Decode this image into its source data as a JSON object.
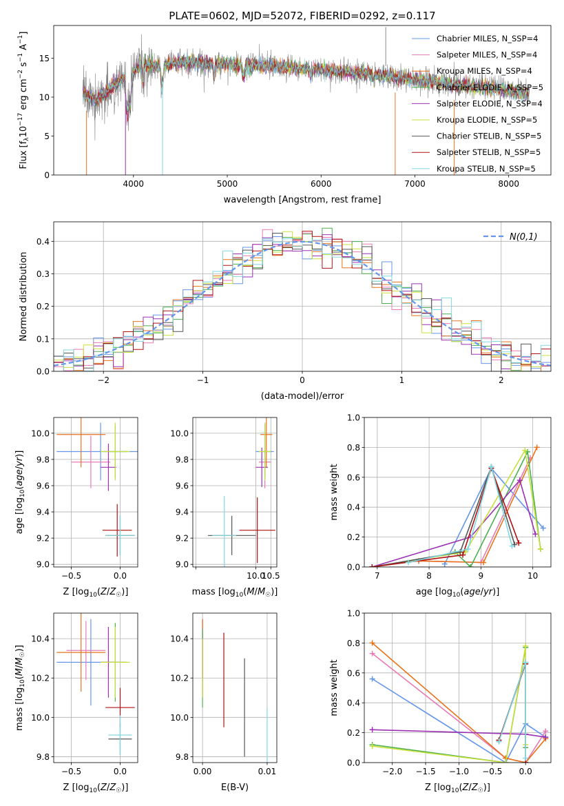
{
  "colors": [
    "#6495ed",
    "#e879b4",
    "#e8731b",
    "#4caf50",
    "#9b30b4",
    "#c8e03c",
    "#555555",
    "#b01010",
    "#80d8e0"
  ],
  "chart_data": [
    {
      "type": "line",
      "title": "PLATE=0602, MJD=52072, FIBERID=0292, z=0.117",
      "xlabel": "wavelength [Angstrom, rest frame]",
      "ylabel": "Flux [f_λ 10^-17 erg cm^-2 s^-1 A^-1]",
      "xlim": [
        3150,
        8450
      ],
      "ylim": [
        0,
        19.2
      ],
      "xticks": [
        4000,
        5000,
        6000,
        7000,
        8000
      ],
      "yticks": [
        0,
        5,
        10,
        15
      ],
      "legend_position": "top-right",
      "series": [
        {
          "name": "Chabrier MILES, N_SSP=4"
        },
        {
          "name": "Salpeter MILES, N_SSP=4"
        },
        {
          "name": "Kroupa MILES, N_SSP=4"
        },
        {
          "name": "Chabrier ELODIE, N_SSP=5"
        },
        {
          "name": "Salpeter ELODIE, N_SSP=4"
        },
        {
          "name": "Kroupa ELODIE, N_SSP=5"
        },
        {
          "name": "Chabrier STELIB, N_SSP=5"
        },
        {
          "name": "Salpeter STELIB, N_SSP=5"
        },
        {
          "name": "Kroupa STELIB, N_SSP=5"
        }
      ],
      "continuum": [
        [
          3460,
          10.5
        ],
        [
          3600,
          9.6
        ],
        [
          3800,
          11.5
        ],
        [
          3950,
          13.0
        ],
        [
          4100,
          14.2
        ],
        [
          4300,
          14.0
        ],
        [
          4500,
          14.5
        ],
        [
          5000,
          14.2
        ],
        [
          5500,
          14.0
        ],
        [
          6000,
          13.5
        ],
        [
          6500,
          13.0
        ],
        [
          7000,
          12.3
        ],
        [
          7500,
          11.5
        ],
        [
          8000,
          10.9
        ],
        [
          8200,
          10.5
        ]
      ],
      "data_range": [
        3460,
        8220
      ]
    },
    {
      "type": "histogram",
      "xlabel": "(data-model)/error",
      "ylabel": "Normed distribution",
      "xlim": [
        -2.5,
        2.5
      ],
      "ylim": [
        0,
        0.46
      ],
      "xticks": [
        -2,
        -1,
        0,
        1,
        2
      ],
      "yticks": [
        0.0,
        0.1,
        0.2,
        0.3,
        0.4
      ],
      "legend": "N(0,1)",
      "bin_width": 0.1,
      "reference_curve": "normal(0,1)"
    },
    {
      "type": "scatter",
      "xlabel": "Z [log10(Z/Z☉)]",
      "ylabel": "age  [log10(age/yr)]",
      "xlim": [
        -0.68,
        0.18
      ],
      "ylim": [
        8.98,
        10.12
      ],
      "xticks": [
        -0.5,
        0.0
      ],
      "yticks": [
        9.0,
        9.2,
        9.4,
        9.6,
        9.8,
        10.0
      ],
      "points": [
        {
          "x": -0.2,
          "xerr": 0.45,
          "y": 9.86,
          "yerr": 0.22
        },
        {
          "x": -0.3,
          "xerr": 0.2,
          "y": 9.78,
          "yerr": 0.2
        },
        {
          "x": -0.4,
          "xerr": 0.25,
          "y": 9.99,
          "yerr": 0.25
        },
        {
          "x": -0.05,
          "xerr": 0.12,
          "y": 9.86,
          "yerr": 0.2
        },
        {
          "x": -0.12,
          "xerr": 0.08,
          "y": 9.74,
          "yerr": 0.18
        },
        {
          "x": -0.05,
          "xerr": 0.15,
          "y": 9.86,
          "yerr": 0.22
        },
        {
          "x": 0.0,
          "xerr": 0.15,
          "y": 9.22,
          "yerr": 0.15
        },
        {
          "x": -0.03,
          "xerr": 0.15,
          "y": 9.26,
          "yerr": 0.2
        },
        {
          "x": 0.0,
          "xerr": 0.15,
          "y": 9.22,
          "yerr": 0.15
        }
      ]
    },
    {
      "type": "scatter",
      "xlabel": "mass [log10(M/M☉)]",
      "ylabel": "",
      "xlim": [
        7.9,
        10.7
      ],
      "ylim": [
        8.98,
        10.12
      ],
      "xticks": [
        8.0,
        10.0,
        10.5
      ],
      "xticklabels": [
        "",
        "10.0",
        "10.5"
      ],
      "yticks": [
        9.0,
        9.2,
        9.4,
        9.6,
        9.8,
        10.0
      ],
      "points": [
        {
          "x": 10.3,
          "xerr": 0.3,
          "y": 9.86,
          "yerr": 0.22
        },
        {
          "x": 10.3,
          "xerr": 0.2,
          "y": 9.78,
          "yerr": 0.2
        },
        {
          "x": 10.35,
          "xerr": 0.2,
          "y": 9.99,
          "yerr": 0.25
        },
        {
          "x": 10.3,
          "xerr": 0.2,
          "y": 9.86,
          "yerr": 0.2
        },
        {
          "x": 10.2,
          "xerr": 0.2,
          "y": 9.74,
          "yerr": 0.15
        },
        {
          "x": 10.3,
          "xerr": 0.2,
          "y": 9.86,
          "yerr": 0.22
        },
        {
          "x": 9.2,
          "xerr": 0.8,
          "y": 9.22,
          "yerr": 0.15
        },
        {
          "x": 10.05,
          "xerr": 0.6,
          "y": 9.26,
          "yerr": 0.25
        },
        {
          "x": 8.95,
          "xerr": 0.4,
          "y": 9.22,
          "yerr": 0.3
        }
      ]
    },
    {
      "type": "line",
      "xlabel": "age  [log10(age/yr)]",
      "ylabel": "mass weight",
      "xlim": [
        6.75,
        10.35
      ],
      "ylim": [
        0,
        1.0
      ],
      "xticks": [
        7,
        8,
        9,
        10
      ],
      "yticks": [
        0.0,
        0.2,
        0.4,
        0.6,
        0.8,
        1.0
      ],
      "series": [
        {
          "x": [
            8.3,
            9.2,
            10.2
          ],
          "y": [
            0.02,
            0.66,
            0.26
          ]
        },
        {
          "x": [
            7.8,
            9.0,
            9.95
          ],
          "y": [
            0.04,
            0.03,
            0.73
          ]
        },
        {
          "x": [
            7.8,
            9.05,
            10.08
          ],
          "y": [
            0.04,
            0.03,
            0.8
          ]
        },
        {
          "x": [
            8.5,
            8.8,
            9.9,
            10.15
          ],
          "y": [
            0.1,
            0.0,
            0.77,
            0.12
          ]
        },
        {
          "x": [
            6.9,
            8.8,
            9.75,
            10.05
          ],
          "y": [
            0.0,
            0.2,
            0.58,
            0.22
          ]
        },
        {
          "x": [
            6.9,
            8.7,
            9.85,
            10.15
          ],
          "y": [
            0.0,
            0.1,
            0.78,
            0.12
          ]
        },
        {
          "x": [
            6.9,
            8.6,
            9.2,
            9.65
          ],
          "y": [
            0.0,
            0.1,
            0.67,
            0.15
          ]
        },
        {
          "x": [
            6.9,
            8.65,
            9.2,
            9.73
          ],
          "y": [
            0.0,
            0.08,
            0.66,
            0.16
          ]
        },
        {
          "x": [
            7.6,
            8.75,
            9.2,
            9.6
          ],
          "y": [
            0.03,
            0.12,
            0.67,
            0.14
          ]
        }
      ]
    },
    {
      "type": "scatter",
      "xlabel": "Z [log10(Z/Z☉)]",
      "ylabel": "mass [log10(M/M☉)]",
      "xlim": [
        -0.68,
        0.18
      ],
      "ylim": [
        9.77,
        10.53
      ],
      "xticks": [
        -0.5,
        0.0
      ],
      "yticks": [
        9.8,
        10.0,
        10.2,
        10.4
      ],
      "points": [
        {
          "x": -0.3,
          "xerr": 0.35,
          "y": 10.28,
          "yerr": 0.22
        },
        {
          "x": -0.35,
          "xerr": 0.2,
          "y": 10.34,
          "yerr": 0.15
        },
        {
          "x": -0.4,
          "xerr": 0.25,
          "y": 10.33,
          "yerr": 0.2
        },
        {
          "x": -0.05,
          "xerr": 0.12,
          "y": 10.28,
          "yerr": 0.2
        },
        {
          "x": -0.12,
          "xerr": 0.08,
          "y": 10.28,
          "yerr": 0.18
        },
        {
          "x": -0.05,
          "xerr": 0.15,
          "y": 10.28,
          "yerr": 0.18
        },
        {
          "x": 0.0,
          "xerr": 0.12,
          "y": 9.89,
          "yerr": 0.08
        },
        {
          "x": 0.0,
          "xerr": 0.15,
          "y": 10.05,
          "yerr": 0.1
        },
        {
          "x": 0.0,
          "xerr": 0.12,
          "y": 9.91,
          "yerr": 0.1
        }
      ]
    },
    {
      "type": "scatter",
      "xlabel": "E(B-V)",
      "ylabel": "",
      "xlim": [
        -0.0015,
        0.0115
      ],
      "ylim": [
        9.77,
        10.53
      ],
      "xticks": [
        0.0,
        0.01
      ],
      "xticklabels": [
        "0.00",
        "0.01"
      ],
      "yticks": [
        9.8,
        10.0,
        10.2,
        10.4
      ],
      "points": [
        {
          "x": 0.0,
          "y": 10.3,
          "yerr": 0.2
        },
        {
          "x": 0.0,
          "y": 10.35,
          "yerr": 0.15
        },
        {
          "x": 0.0,
          "y": 10.3,
          "yerr": 0.2
        },
        {
          "x": 0.0,
          "y": 10.25,
          "yerr": 0.2
        },
        {
          "x": 0.0,
          "y": 10.3,
          "yerr": 0.1
        },
        {
          "x": 0.0,
          "y": 10.25,
          "yerr": 0.15
        },
        {
          "x": 0.0065,
          "y": 10.05,
          "yerr": 0.25
        },
        {
          "x": 0.0033,
          "y": 10.19,
          "yerr": 0.24
        },
        {
          "x": 0.01,
          "y": 9.9,
          "yerr": 0.15
        }
      ]
    },
    {
      "type": "line",
      "xlabel": "Z [log10(Z/Z☉)]",
      "ylabel": "mass weight",
      "xlim": [
        -2.42,
        0.38
      ],
      "ylim": [
        0,
        1.0
      ],
      "xticks": [
        -2.0,
        -1.5,
        -1.0,
        -0.5,
        0.0
      ],
      "yticks": [
        0.0,
        0.2,
        0.4,
        0.6,
        0.8,
        1.0
      ],
      "series": [
        {
          "x": [
            -2.3,
            -0.3,
            0.0,
            0.3
          ],
          "y": [
            0.56,
            0.0,
            0.26,
            0.17
          ]
        },
        {
          "x": [
            -2.3,
            -0.3,
            0.0,
            0.3
          ],
          "y": [
            0.73,
            0.03,
            0.0,
            0.21
          ]
        },
        {
          "x": [
            -2.3,
            -0.3,
            0.0,
            0.3
          ],
          "y": [
            0.8,
            0.03,
            0.0,
            0.16
          ]
        },
        {
          "x": [
            -2.3,
            -0.3,
            0.0,
            0.0
          ],
          "y": [
            0.12,
            0.0,
            0.77,
            0.1
          ]
        },
        {
          "x": [
            -2.3,
            0.0,
            0.3
          ],
          "y": [
            0.22,
            0.19,
            0.17
          ]
        },
        {
          "x": [
            -2.3,
            -0.3,
            0.0,
            0.0
          ],
          "y": [
            0.11,
            0.0,
            0.78,
            0.12
          ]
        },
        {
          "x": [
            -0.4,
            0.0,
            0.0
          ],
          "y": [
            0.15,
            0.67,
            0.0
          ]
        },
        {
          "x": [
            -0.4,
            0.0,
            0.0
          ],
          "y": [
            0.15,
            0.66,
            0.0
          ]
        },
        {
          "x": [
            -0.4,
            0.0,
            0.0
          ],
          "y": [
            0.14,
            0.67,
            0.03
          ]
        }
      ]
    }
  ]
}
